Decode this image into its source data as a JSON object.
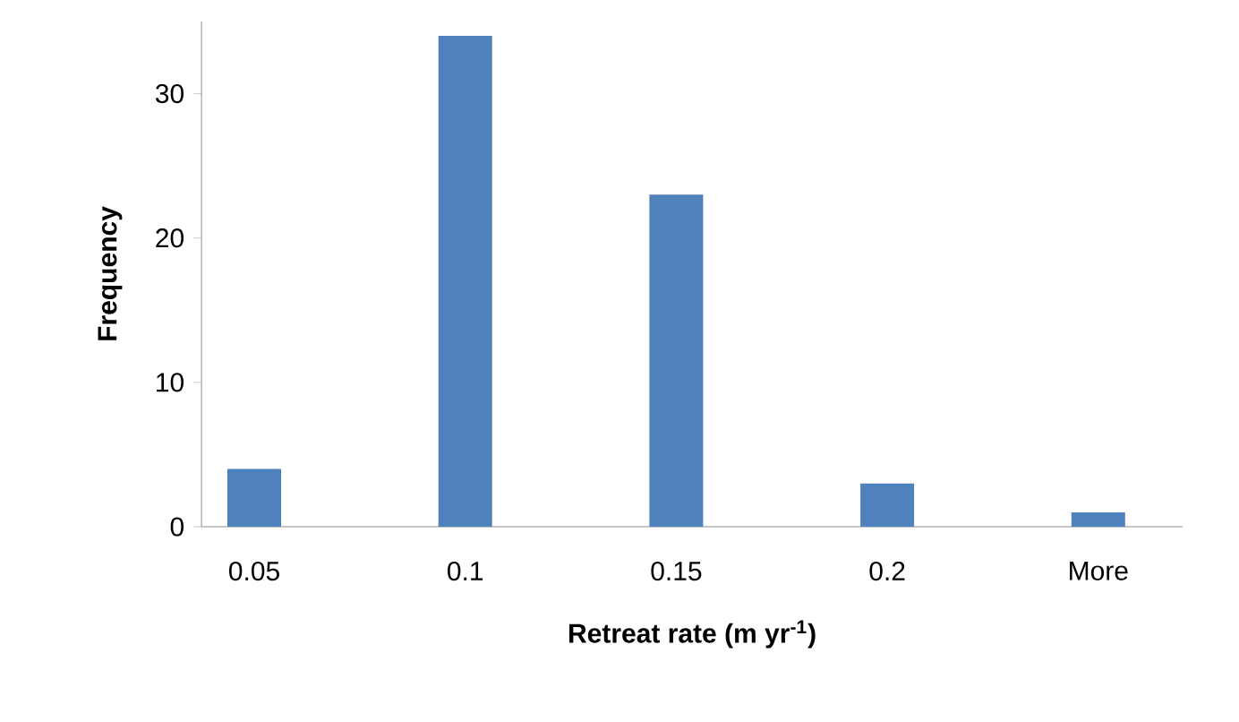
{
  "chart_data": {
    "type": "bar",
    "categories": [
      "0.05",
      "0.1",
      "0.15",
      "0.2",
      "More"
    ],
    "values": [
      4,
      34,
      23,
      3,
      1
    ],
    "color": "#4f81bd",
    "ylim": [
      0,
      35
    ],
    "yticks": [
      0,
      10,
      20,
      30
    ],
    "xlabel": "Retreat rate (m yr$^{-1}$)",
    "ylabel": "Frequency"
  }
}
